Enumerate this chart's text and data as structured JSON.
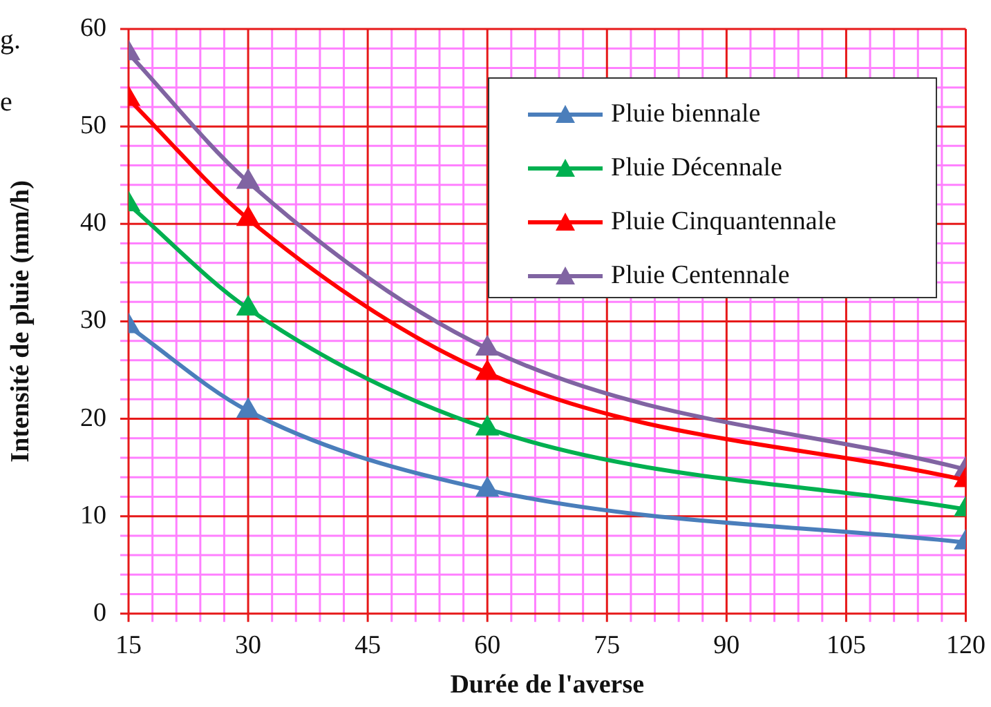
{
  "chart_data": {
    "type": "line",
    "xlabel": "Durée de l'averse",
    "ylabel": "Intensité de pluie (mm/h)",
    "x": [
      15,
      30,
      60,
      120
    ],
    "series": [
      {
        "name": "Pluie biennale",
        "color": "#4a7ebb",
        "values": [
          29.5,
          20.8,
          12.7,
          7.3
        ]
      },
      {
        "name": "Pluie Décennale",
        "color": "#00b050",
        "values": [
          42,
          31.3,
          19,
          10.7
        ]
      },
      {
        "name": "Pluie Cinquantennale",
        "color": "#ff0000",
        "values": [
          52.8,
          40.5,
          24.7,
          13.7
        ]
      },
      {
        "name": "Pluie Centennale",
        "color": "#8064a2",
        "values": [
          57.5,
          44.3,
          27.2,
          14.8
        ]
      }
    ],
    "xlim": [
      15,
      120
    ],
    "xticks": [
      15,
      {
        "value": 18,
        "label": null
      },
      {
        "value": 21,
        "label": null
      },
      {
        "value": 24,
        "label": null
      },
      {
        "value": 27,
        "label": null
      },
      30,
      {
        "value": 33,
        "label": null
      },
      {
        "value": 36,
        "label": null
      },
      {
        "value": 39,
        "label": null
      },
      {
        "value": 42,
        "label": null
      },
      45,
      {
        "value": 48,
        "label": null
      },
      {
        "value": 51,
        "label": null
      },
      {
        "value": 54,
        "label": null
      },
      {
        "value": 57,
        "label": null
      },
      60,
      {
        "value": 63,
        "label": null
      },
      {
        "value": 66,
        "label": null
      },
      {
        "value": 69,
        "label": null
      },
      {
        "value": 72,
        "label": null
      },
      75,
      {
        "value": 78,
        "label": null
      },
      {
        "value": 81,
        "label": null
      },
      {
        "value": 84,
        "label": null
      },
      {
        "value": 87,
        "label": null
      },
      90,
      {
        "value": 93,
        "label": null
      },
      {
        "value": 96,
        "label": null
      },
      {
        "value": 99,
        "label": null
      },
      {
        "value": 102,
        "label": null
      },
      105,
      {
        "value": 108,
        "label": null
      },
      {
        "value": 111,
        "label": null
      },
      {
        "value": 114,
        "label": null
      },
      {
        "value": 117,
        "label": null
      },
      120
    ],
    "ylim": [
      0,
      60
    ],
    "yticks": [
      0,
      {
        "value": 2,
        "label": null
      },
      {
        "value": 4,
        "label": null
      },
      {
        "value": 6,
        "label": null
      },
      {
        "value": 8,
        "label": null
      },
      10,
      {
        "value": 12,
        "label": null
      },
      {
        "value": 14,
        "label": null
      },
      {
        "value": 16,
        "label": null
      },
      {
        "value": 18,
        "label": null
      },
      20,
      {
        "value": 22,
        "label": null
      },
      {
        "value": 24,
        "label": null
      },
      {
        "value": 26,
        "label": null
      },
      {
        "value": 28,
        "label": null
      },
      30,
      {
        "value": 32,
        "label": null
      },
      {
        "value": 34,
        "label": null
      },
      {
        "value": 36,
        "label": null
      },
      {
        "value": 38,
        "label": null
      },
      40,
      {
        "value": 42,
        "label": null
      },
      {
        "value": 44,
        "label": null
      },
      {
        "value": 46,
        "label": null
      },
      {
        "value": 48,
        "label": null
      },
      50,
      {
        "value": 52,
        "label": null
      },
      {
        "value": 54,
        "label": null
      },
      {
        "value": 56,
        "label": null
      },
      {
        "value": 58,
        "label": null
      },
      60
    ],
    "grid": true,
    "legend": "top right",
    "marker": "triangle",
    "line_style": "solid",
    "annotations": [
      "g.",
      "e"
    ]
  }
}
